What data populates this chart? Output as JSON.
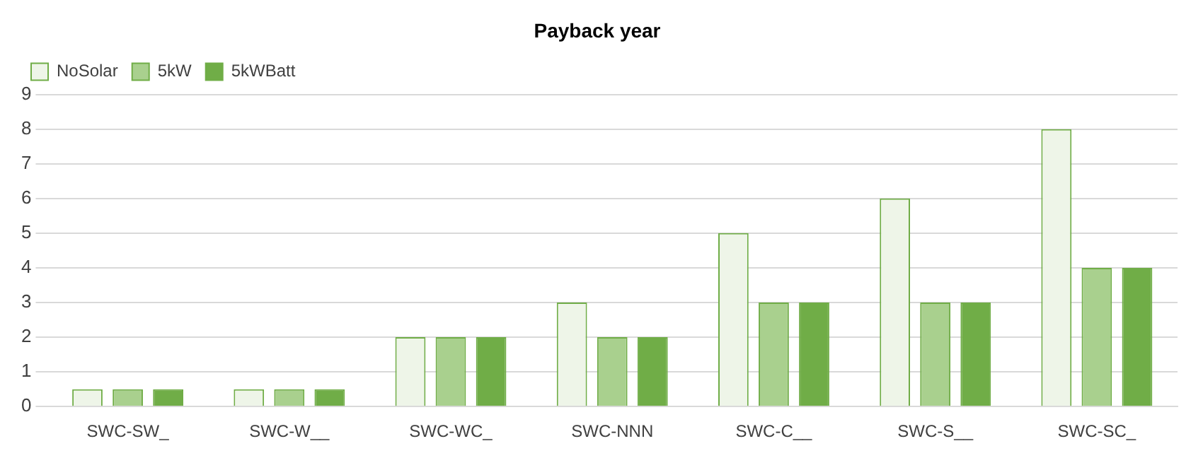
{
  "chart_data": {
    "type": "bar",
    "title": "Payback year",
    "categories": [
      "SWC-SW_",
      "SWC-W__",
      "SWC-WC_",
      "SWC-NNN",
      "SWC-C__",
      "SWC-S__",
      "SWC-SC_"
    ],
    "series": [
      {
        "name": "NoSolar",
        "color": "#eef5e8",
        "values": [
          0.5,
          0.5,
          2,
          3,
          5,
          6,
          8
        ]
      },
      {
        "name": "5kW",
        "color": "#a9d08e",
        "values": [
          0.5,
          0.5,
          2,
          2,
          3,
          3,
          4
        ]
      },
      {
        "name": "5kWBatt",
        "color": "#70ad47",
        "values": [
          0.5,
          0.5,
          2,
          2,
          3,
          3,
          4
        ]
      }
    ],
    "ylim": [
      0,
      9
    ],
    "yticks": [
      0,
      1,
      2,
      3,
      4,
      5,
      6,
      7,
      8,
      9
    ],
    "grid": "y",
    "legend": "top left"
  }
}
